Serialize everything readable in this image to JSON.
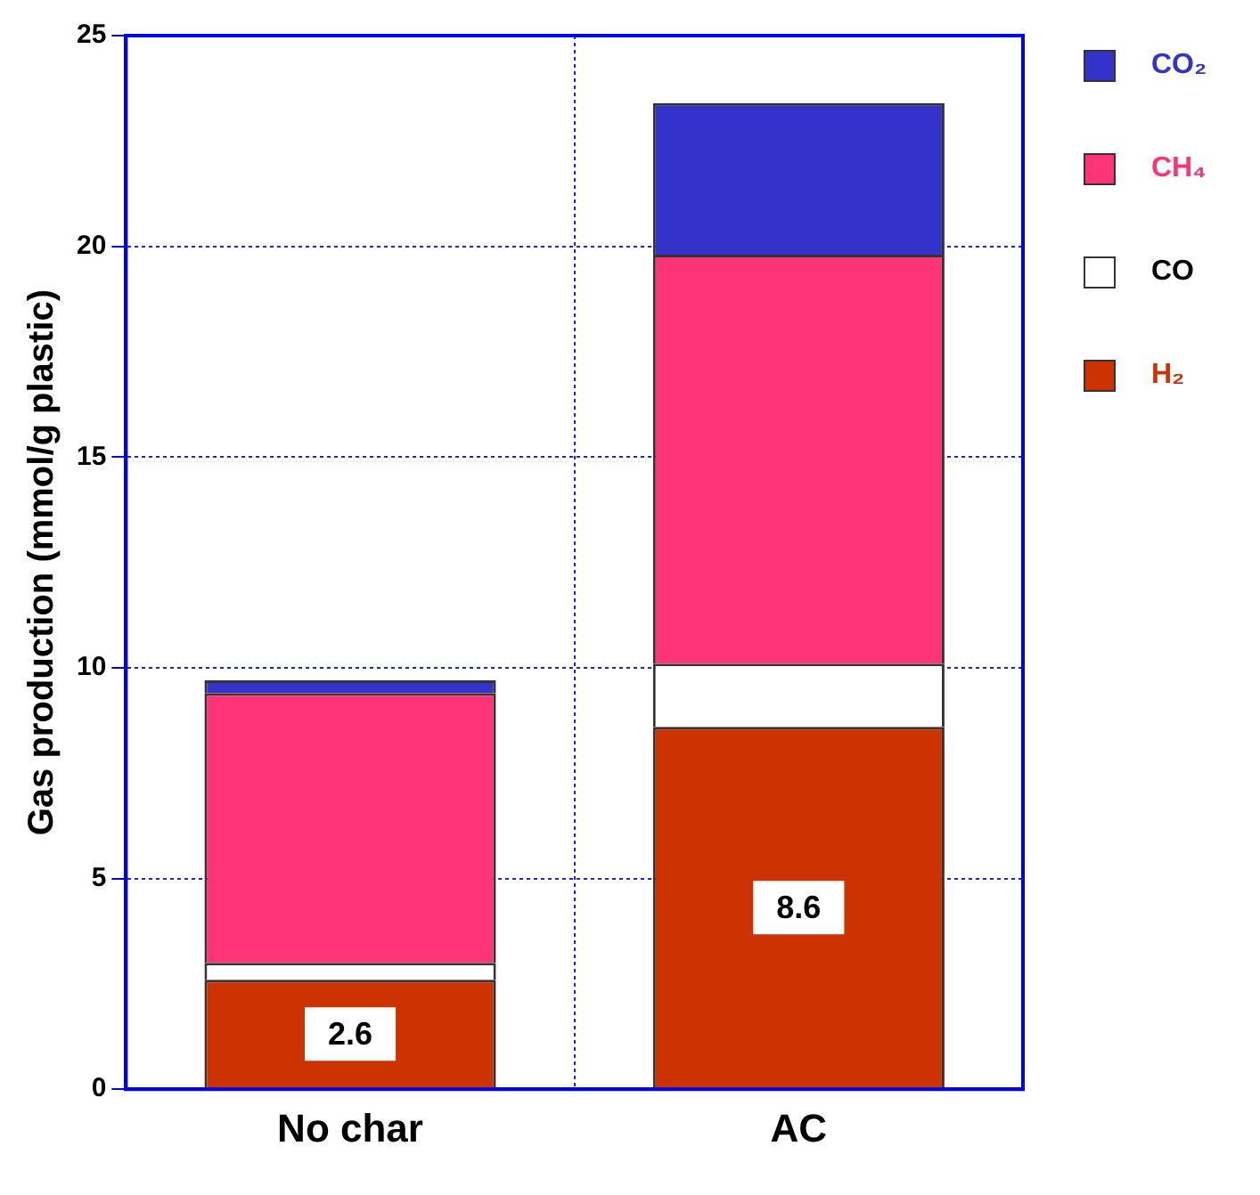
{
  "chart_data": {
    "type": "bar",
    "stacked": true,
    "ylabel": "Gas production (mmol/g plastic)",
    "categories": [
      "No char",
      "AC"
    ],
    "series": [
      {
        "name": "H₂",
        "color": "#cc3300",
        "values": [
          2.6,
          8.6
        ],
        "value_labels": [
          "2.6",
          "8.6"
        ]
      },
      {
        "name": "CO",
        "color": "#ffffff",
        "values": [
          0.4,
          1.5
        ]
      },
      {
        "name": "CH₄",
        "color": "#ff3377",
        "values": [
          6.4,
          9.7
        ]
      },
      {
        "name": "CO₂",
        "color": "#3333cc",
        "values": [
          0.3,
          3.6
        ]
      }
    ],
    "ylim": [
      0,
      25
    ],
    "yticks": [
      0,
      5,
      10,
      15,
      20,
      25
    ],
    "grid": true,
    "legend": "top right"
  }
}
